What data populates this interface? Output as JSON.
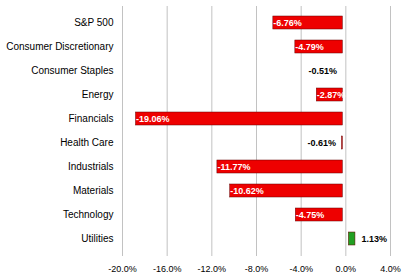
{
  "chart_data": {
    "type": "bar",
    "orientation": "horizontal",
    "categories": [
      "S&P 500",
      "Consumer Discretionary",
      "Consumer Staples",
      "Energy",
      "Financials",
      "Health Care",
      "Industrials",
      "Materials",
      "Technology",
      "Utilities"
    ],
    "values": [
      -6.76,
      -4.79,
      -0.51,
      -2.87,
      -19.06,
      -0.61,
      -11.77,
      -10.62,
      -4.75,
      1.13
    ],
    "value_labels": [
      "-6.76%",
      "-4.79%",
      "-0.51%",
      "-2.87%",
      "-19.06%",
      "-0.61%",
      "-11.77%",
      "-10.62%",
      "-4.75%",
      "1.13%"
    ],
    "colors": [
      "#ee0000",
      "#ee0000",
      "#ee0000",
      "#ee0000",
      "#ee0000",
      "#ee0000",
      "#ee0000",
      "#ee0000",
      "#ee0000",
      "#22a022"
    ],
    "xlim": [
      -20,
      4
    ],
    "xticks": [
      {
        "value": -20,
        "label": "-20.0%"
      },
      {
        "value": -16,
        "label": "-16.0%"
      },
      {
        "value": -12,
        "label": "-12.0%"
      },
      {
        "value": -8,
        "label": "-8.0%"
      },
      {
        "value": -4,
        "label": "-4.0%"
      },
      {
        "value": 0,
        "label": "0.0%"
      },
      {
        "value": 4,
        "label": "4.0%"
      }
    ],
    "grid": true,
    "data_labels": true
  }
}
